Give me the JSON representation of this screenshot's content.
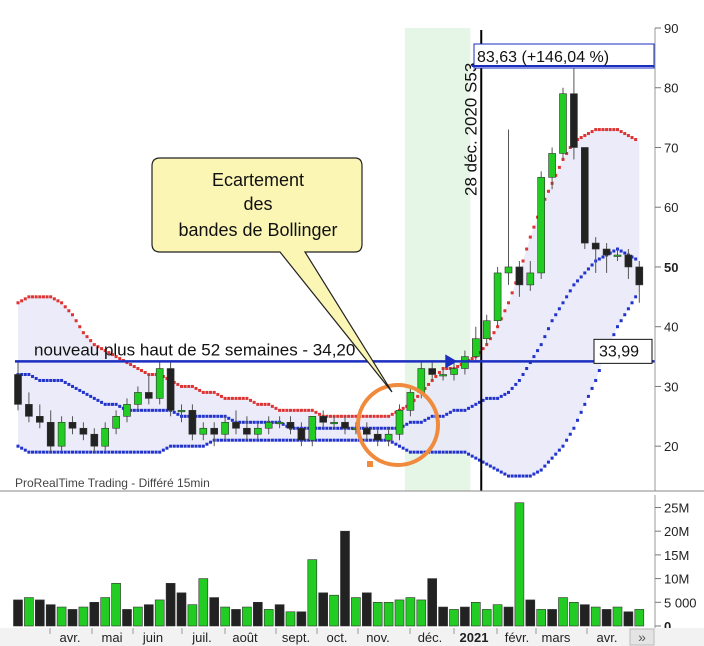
{
  "source_label": "ProRealTime Trading - Différé 15min",
  "callout": {
    "line1": "Ecartement",
    "line2": "des",
    "line3": "bandes de Bollinger"
  },
  "high_label": "83,63 (+146,04 %)",
  "date_marker": "28 déc. 2020 S53",
  "annotation_52w": "nouveau plus haut de 52 semaines - 34,20",
  "last_price_label": "33,99",
  "nav_button": "»",
  "colors": {
    "up": "#22cc22",
    "down": "#222222",
    "band_upper": "#dd3333",
    "band_lower": "#2233cc",
    "band_fill": "#e8e8f8",
    "highlight": "#e6f6e6",
    "line_blue": "#1a2ec0",
    "circle": "#f08a3c",
    "callout_fill": "#fbf6b4"
  },
  "chart_data": [
    {
      "type": "candlestick",
      "title": "",
      "y_axis_side": "right",
      "ylim": [
        13,
        90
      ],
      "yticks": [
        {
          "v": 20,
          "t": "20"
        },
        {
          "v": 30,
          "t": "30"
        },
        {
          "v": 40,
          "t": "40"
        },
        {
          "v": 50,
          "t": "50"
        },
        {
          "v": 60,
          "t": "60"
        },
        {
          "v": 70,
          "t": "70"
        },
        {
          "v": 80,
          "t": "80"
        },
        {
          "v": 90,
          "t": "90"
        }
      ],
      "months": [
        "avr.",
        "mai",
        "juin",
        "juil.",
        "août",
        "sept.",
        "oct.",
        "nov.",
        "déc.",
        "2021",
        "févr.",
        "mars",
        "avr."
      ],
      "candles": [
        {
          "o": 32,
          "h": 34,
          "c": 27,
          "l": 26
        },
        {
          "o": 27,
          "h": 29,
          "c": 25,
          "l": 24
        },
        {
          "o": 25,
          "h": 27,
          "c": 24,
          "l": 23
        },
        {
          "o": 24,
          "h": 26,
          "c": 20,
          "l": 19
        },
        {
          "o": 20,
          "h": 25,
          "c": 24,
          "l": 19
        },
        {
          "o": 24,
          "h": 25,
          "c": 23,
          "l": 22
        },
        {
          "o": 23,
          "h": 24,
          "c": 22,
          "l": 21
        },
        {
          "o": 22,
          "h": 23,
          "c": 20,
          "l": 19
        },
        {
          "o": 20,
          "h": 24,
          "c": 23,
          "l": 19
        },
        {
          "o": 23,
          "h": 26,
          "c": 25,
          "l": 22
        },
        {
          "o": 25,
          "h": 28,
          "c": 27,
          "l": 24
        },
        {
          "o": 27,
          "h": 30,
          "c": 29,
          "l": 26
        },
        {
          "o": 29,
          "h": 32,
          "c": 28,
          "l": 27
        },
        {
          "o": 28,
          "h": 34,
          "c": 33,
          "l": 27
        },
        {
          "o": 33,
          "h": 34,
          "c": 26,
          "l": 25
        },
        {
          "o": 26,
          "h": 27,
          "c": 26,
          "l": 24
        },
        {
          "o": 26,
          "h": 27,
          "c": 22,
          "l": 21
        },
        {
          "o": 22,
          "h": 24,
          "c": 23,
          "l": 21
        },
        {
          "o": 23,
          "h": 24,
          "c": 22,
          "l": 20
        },
        {
          "o": 22,
          "h": 25,
          "c": 24,
          "l": 21
        },
        {
          "o": 24,
          "h": 26,
          "c": 23,
          "l": 22
        },
        {
          "o": 23,
          "h": 25,
          "c": 22,
          "l": 21
        },
        {
          "o": 22,
          "h": 24,
          "c": 23,
          "l": 21
        },
        {
          "o": 23,
          "h": 25,
          "c": 24,
          "l": 22
        },
        {
          "o": 24,
          "h": 25,
          "c": 24,
          "l": 23
        },
        {
          "o": 24,
          "h": 25,
          "c": 23,
          "l": 22
        },
        {
          "o": 23,
          "h": 24,
          "c": 21,
          "l": 20
        },
        {
          "o": 21,
          "h": 25,
          "c": 25,
          "l": 20
        },
        {
          "o": 25,
          "h": 26,
          "c": 24,
          "l": 23
        },
        {
          "o": 24,
          "h": 25,
          "c": 24,
          "l": 23
        },
        {
          "o": 24,
          "h": 25,
          "c": 23,
          "l": 22
        },
        {
          "o": 23,
          "h": 24,
          "c": 23,
          "l": 22
        },
        {
          "o": 23,
          "h": 24,
          "c": 22,
          "l": 21
        },
        {
          "o": 22,
          "h": 23,
          "c": 21,
          "l": 20
        },
        {
          "o": 21,
          "h": 23,
          "c": 22,
          "l": 20
        },
        {
          "o": 22,
          "h": 27,
          "c": 26,
          "l": 21
        },
        {
          "o": 26,
          "h": 30,
          "c": 29,
          "l": 25
        },
        {
          "o": 29,
          "h": 34,
          "c": 33,
          "l": 28
        },
        {
          "o": 33,
          "h": 34,
          "c": 32,
          "l": 31
        },
        {
          "o": 32,
          "h": 33,
          "c": 32,
          "l": 31
        },
        {
          "o": 32,
          "h": 34,
          "c": 33,
          "l": 31
        },
        {
          "o": 33,
          "h": 36,
          "c": 35,
          "l": 32
        },
        {
          "o": 35,
          "h": 40,
          "c": 38,
          "l": 34
        },
        {
          "o": 38,
          "h": 42,
          "c": 41,
          "l": 37
        },
        {
          "o": 41,
          "h": 50,
          "c": 49,
          "l": 40
        },
        {
          "o": 49,
          "h": 73,
          "c": 50,
          "l": 47
        },
        {
          "o": 50,
          "h": 51,
          "c": 47,
          "l": 45
        },
        {
          "o": 47,
          "h": 51,
          "c": 49,
          "l": 46
        },
        {
          "o": 49,
          "h": 66,
          "c": 65,
          "l": 48
        },
        {
          "o": 65,
          "h": 70,
          "c": 69,
          "l": 63
        },
        {
          "o": 69,
          "h": 80,
          "c": 79,
          "l": 68
        },
        {
          "o": 79,
          "h": 84,
          "c": 70,
          "l": 68
        },
        {
          "o": 70,
          "h": 70,
          "c": 54,
          "l": 53
        },
        {
          "o": 54,
          "h": 55,
          "c": 53,
          "l": 49
        },
        {
          "o": 53,
          "h": 54,
          "c": 52,
          "l": 49
        },
        {
          "o": 52,
          "h": 53,
          "c": 52,
          "l": 51
        },
        {
          "o": 52,
          "h": 53,
          "c": 50,
          "l": 48
        },
        {
          "o": 50,
          "h": 51,
          "c": 47,
          "l": 44
        }
      ],
      "bollinger_upper": [
        44,
        45,
        45,
        45,
        44,
        42,
        39,
        37,
        36,
        35,
        34,
        33,
        32,
        32,
        31,
        30,
        30,
        29,
        29,
        28,
        28,
        28,
        27,
        27,
        26,
        26,
        26,
        26,
        25,
        25,
        25,
        25,
        25,
        25,
        25,
        26,
        27,
        29,
        31,
        33,
        33,
        34,
        35,
        37,
        40,
        44,
        49,
        55,
        60,
        64,
        68,
        71,
        72,
        73,
        73,
        73,
        72,
        71
      ],
      "bollinger_lower": [
        20,
        19,
        19,
        19,
        19,
        19,
        19,
        19,
        19,
        19,
        19,
        19,
        19,
        19,
        20,
        20,
        20,
        20,
        21,
        21,
        21,
        21,
        21,
        21,
        21,
        21,
        21,
        21,
        21,
        21,
        21,
        21,
        21,
        21,
        21,
        20,
        19,
        19,
        19,
        19,
        19,
        19,
        18,
        17,
        16,
        15,
        15,
        15,
        16,
        18,
        20,
        23,
        27,
        31,
        36,
        40,
        43,
        46
      ],
      "bollinger_mid": [
        32,
        32,
        31,
        31,
        31,
        30,
        29,
        28,
        27,
        27,
        26,
        26,
        26,
        26,
        26,
        25,
        25,
        25,
        25,
        25,
        24,
        24,
        24,
        24,
        24,
        23,
        23,
        23,
        23,
        23,
        23,
        23,
        23,
        23,
        23,
        23,
        24,
        24,
        25,
        25,
        26,
        26,
        27,
        28,
        28,
        29,
        31,
        34,
        37,
        41,
        44,
        47,
        49,
        51,
        52,
        53,
        52,
        51
      ],
      "highlight_range": [
        35.5,
        41.5
      ],
      "marker_index": 42.5,
      "annotations": [
        {
          "text": "83,63 (+146,04 %)",
          "value": 83.63
        },
        {
          "text": "nouveau plus haut de 52 semaines - 34,20",
          "value": 34.2
        },
        {
          "text": "33,99",
          "value": 33.99
        }
      ]
    },
    {
      "type": "bar",
      "title": "volume",
      "ylim": [
        0,
        27000000
      ],
      "yticks": [
        {
          "v": 0,
          "t": "0"
        },
        {
          "v": 5000000,
          "t": "5 000"
        },
        {
          "v": 10000000,
          "t": "10M"
        },
        {
          "v": 15000000,
          "t": "15M"
        },
        {
          "v": 20000000,
          "t": "20M"
        },
        {
          "v": 25000000,
          "t": "25M"
        }
      ],
      "values": [
        5.5,
        6,
        5.5,
        4.5,
        4,
        3.5,
        4,
        5,
        6,
        9,
        3.5,
        4,
        4.5,
        5.5,
        9,
        7,
        4.5,
        10,
        6,
        4,
        3.5,
        4,
        5,
        3.5,
        4.5,
        3,
        3,
        14,
        7,
        6.5,
        20,
        6,
        7,
        5,
        5,
        5.5,
        6,
        5.5,
        10,
        4,
        3.5,
        4,
        5,
        3.5,
        4.5,
        4,
        26,
        5.5,
        3.5,
        3.5,
        6,
        5,
        4.5,
        4,
        3.5,
        4,
        3,
        3.5
      ],
      "up": [
        0,
        1,
        0,
        0,
        1,
        0,
        1,
        0,
        1,
        1,
        0,
        1,
        0,
        1,
        0,
        0,
        1,
        1,
        0,
        1,
        0,
        1,
        0,
        1,
        0,
        1,
        0,
        1,
        0,
        1,
        0,
        1,
        0,
        1,
        1,
        1,
        1,
        1,
        0,
        0,
        1,
        0,
        1,
        1,
        1,
        0,
        1,
        0,
        1,
        0,
        1,
        1,
        0,
        1,
        0,
        1,
        0,
        1
      ]
    }
  ]
}
